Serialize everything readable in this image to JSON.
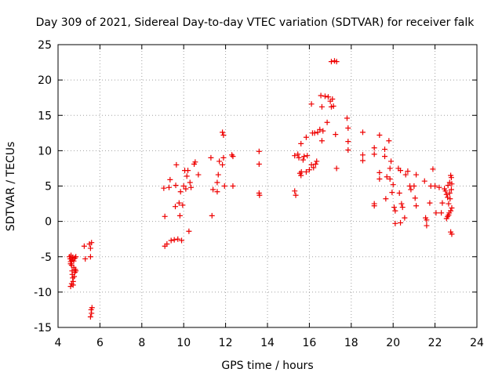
{
  "chart_data": {
    "type": "scatter",
    "title": "Day 309 of 2021, Sidereal Day-to-day VTEC variation (SDTVAR) for receiver falk",
    "xlabel": "GPS time / hours",
    "ylabel": "SDTVAR / TECUs",
    "xlim": [
      4,
      24
    ],
    "ylim": [
      -15,
      25
    ],
    "xticks": [
      4,
      6,
      8,
      10,
      12,
      14,
      16,
      18,
      20,
      22,
      24
    ],
    "yticks": [
      -15,
      -10,
      -5,
      0,
      5,
      10,
      15,
      20,
      25
    ],
    "grid": true,
    "marker": "+",
    "color": "#ee0000",
    "series": [
      {
        "name": "SDTVAR",
        "points": [
          [
            4.55,
            -5.0
          ],
          [
            4.58,
            -5.3
          ],
          [
            4.6,
            -5.7
          ],
          [
            4.6,
            -6.0
          ],
          [
            4.62,
            -4.8
          ],
          [
            4.65,
            -5.5
          ],
          [
            4.65,
            -6.2
          ],
          [
            4.67,
            -7.0
          ],
          [
            4.68,
            -7.5
          ],
          [
            4.7,
            -8.0
          ],
          [
            4.7,
            -5.1
          ],
          [
            4.72,
            -8.5
          ],
          [
            4.72,
            -9.0
          ],
          [
            4.75,
            -5.6
          ],
          [
            4.75,
            -6.5
          ],
          [
            4.77,
            -7.8
          ],
          [
            4.8,
            -5.2
          ],
          [
            4.8,
            -7.2
          ],
          [
            4.82,
            -6.8
          ],
          [
            4.85,
            -5.0
          ],
          [
            4.85,
            -7.0
          ],
          [
            4.6,
            -9.2
          ],
          [
            4.65,
            -8.8
          ],
          [
            5.25,
            -3.5
          ],
          [
            5.3,
            -5.3
          ],
          [
            5.5,
            -3.2
          ],
          [
            5.55,
            -3.8
          ],
          [
            5.55,
            -5.0
          ],
          [
            5.6,
            -3.0
          ],
          [
            5.58,
            -12.5
          ],
          [
            5.6,
            -13.0
          ],
          [
            5.55,
            -13.5
          ],
          [
            5.62,
            -12.2
          ],
          [
            9.05,
            4.7
          ],
          [
            9.1,
            0.7
          ],
          [
            9.1,
            -3.5
          ],
          [
            9.2,
            -3.2
          ],
          [
            9.3,
            4.8
          ],
          [
            9.35,
            5.9
          ],
          [
            9.4,
            -2.7
          ],
          [
            9.55,
            -2.6
          ],
          [
            9.6,
            2.1
          ],
          [
            9.62,
            5.1
          ],
          [
            9.65,
            8.0
          ],
          [
            9.72,
            -2.5
          ],
          [
            9.78,
            2.6
          ],
          [
            9.82,
            0.8
          ],
          [
            9.85,
            4.2
          ],
          [
            9.9,
            -2.7
          ],
          [
            9.95,
            2.3
          ],
          [
            10.0,
            5.0
          ],
          [
            10.05,
            7.2
          ],
          [
            10.1,
            4.6
          ],
          [
            10.15,
            6.4
          ],
          [
            10.2,
            7.2
          ],
          [
            10.25,
            -1.4
          ],
          [
            10.3,
            5.5
          ],
          [
            10.35,
            4.8
          ],
          [
            10.5,
            8.1
          ],
          [
            10.55,
            8.4
          ],
          [
            10.7,
            6.6
          ],
          [
            11.3,
            9.0
          ],
          [
            11.35,
            0.8
          ],
          [
            11.4,
            4.5
          ],
          [
            11.6,
            5.5
          ],
          [
            11.6,
            4.2
          ],
          [
            11.65,
            6.6
          ],
          [
            11.7,
            8.5
          ],
          [
            11.85,
            8.0
          ],
          [
            11.85,
            12.6
          ],
          [
            11.9,
            12.2
          ],
          [
            11.9,
            9.0
          ],
          [
            11.95,
            5.0
          ],
          [
            12.3,
            9.4
          ],
          [
            12.35,
            9.2
          ],
          [
            12.35,
            5.0
          ],
          [
            13.6,
            9.9
          ],
          [
            13.6,
            8.1
          ],
          [
            13.6,
            4.0
          ],
          [
            13.62,
            3.7
          ],
          [
            15.3,
            9.3
          ],
          [
            15.3,
            4.3
          ],
          [
            15.35,
            3.7
          ],
          [
            15.45,
            9.5
          ],
          [
            15.5,
            9.0
          ],
          [
            15.55,
            6.8
          ],
          [
            15.6,
            11.0
          ],
          [
            15.6,
            6.5
          ],
          [
            15.62,
            7.0
          ],
          [
            15.7,
            8.7
          ],
          [
            15.75,
            9.2
          ],
          [
            15.85,
            11.9
          ],
          [
            15.85,
            7.0
          ],
          [
            15.9,
            9.3
          ],
          [
            16.0,
            7.3
          ],
          [
            16.1,
            8.0
          ],
          [
            16.1,
            16.6
          ],
          [
            16.15,
            12.5
          ],
          [
            16.2,
            7.6
          ],
          [
            16.25,
            12.5
          ],
          [
            16.3,
            8.1
          ],
          [
            16.35,
            8.5
          ],
          [
            16.4,
            12.6
          ],
          [
            16.5,
            13.0
          ],
          [
            16.55,
            17.8
          ],
          [
            16.6,
            16.2
          ],
          [
            16.6,
            11.4
          ],
          [
            16.65,
            12.8
          ],
          [
            16.75,
            17.7
          ],
          [
            16.85,
            14.0
          ],
          [
            16.9,
            17.6
          ],
          [
            17.0,
            17.0
          ],
          [
            17.05,
            16.2
          ],
          [
            17.05,
            22.6
          ],
          [
            17.1,
            17.3
          ],
          [
            17.15,
            16.3
          ],
          [
            17.2,
            22.7
          ],
          [
            17.25,
            12.3
          ],
          [
            17.3,
            22.6
          ],
          [
            17.3,
            7.5
          ],
          [
            17.8,
            14.6
          ],
          [
            17.85,
            13.2
          ],
          [
            17.85,
            11.3
          ],
          [
            17.85,
            10.1
          ],
          [
            18.55,
            12.6
          ],
          [
            18.55,
            9.4
          ],
          [
            18.55,
            8.6
          ],
          [
            19.1,
            10.4
          ],
          [
            19.1,
            9.5
          ],
          [
            19.1,
            2.5
          ],
          [
            19.1,
            2.2
          ],
          [
            19.35,
            12.2
          ],
          [
            19.35,
            6.9
          ],
          [
            19.35,
            6.0
          ],
          [
            19.6,
            10.2
          ],
          [
            19.6,
            9.2
          ],
          [
            19.65,
            3.2
          ],
          [
            19.7,
            6.3
          ],
          [
            19.8,
            11.4
          ],
          [
            19.85,
            7.5
          ],
          [
            19.85,
            6.0
          ],
          [
            19.9,
            8.5
          ],
          [
            19.95,
            4.1
          ],
          [
            20.0,
            5.2
          ],
          [
            20.05,
            2.0
          ],
          [
            20.1,
            1.5
          ],
          [
            20.1,
            -0.3
          ],
          [
            20.25,
            7.5
          ],
          [
            20.3,
            4.0
          ],
          [
            20.35,
            7.2
          ],
          [
            20.35,
            -0.2
          ],
          [
            20.4,
            2.5
          ],
          [
            20.45,
            2.0
          ],
          [
            20.55,
            0.5
          ],
          [
            20.6,
            6.6
          ],
          [
            20.7,
            7.1
          ],
          [
            20.8,
            5.0
          ],
          [
            20.85,
            4.5
          ],
          [
            21.0,
            5.0
          ],
          [
            21.05,
            3.3
          ],
          [
            21.1,
            2.2
          ],
          [
            21.1,
            6.6
          ],
          [
            21.5,
            5.7
          ],
          [
            21.55,
            0.5
          ],
          [
            21.6,
            0.2
          ],
          [
            21.6,
            -0.6
          ],
          [
            21.75,
            2.6
          ],
          [
            21.8,
            5.0
          ],
          [
            21.9,
            7.4
          ],
          [
            22.0,
            5.0
          ],
          [
            22.05,
            1.2
          ],
          [
            22.2,
            4.8
          ],
          [
            22.3,
            1.2
          ],
          [
            22.35,
            2.6
          ],
          [
            22.45,
            4.6
          ],
          [
            22.5,
            4.3
          ],
          [
            22.55,
            3.8
          ],
          [
            22.55,
            0.4
          ],
          [
            22.6,
            0.7
          ],
          [
            22.6,
            3.4
          ],
          [
            22.62,
            5.1
          ],
          [
            22.65,
            2.5
          ],
          [
            22.65,
            0.9
          ],
          [
            22.68,
            1.2
          ],
          [
            22.7,
            4.0
          ],
          [
            22.7,
            5.5
          ],
          [
            22.72,
            3.2
          ],
          [
            22.75,
            6.5
          ],
          [
            22.75,
            1.5
          ],
          [
            22.75,
            -1.5
          ],
          [
            22.78,
            6.2
          ],
          [
            22.78,
            4.5
          ],
          [
            22.8,
            5.3
          ],
          [
            22.8,
            1.9
          ],
          [
            22.8,
            -1.8
          ]
        ]
      }
    ]
  }
}
